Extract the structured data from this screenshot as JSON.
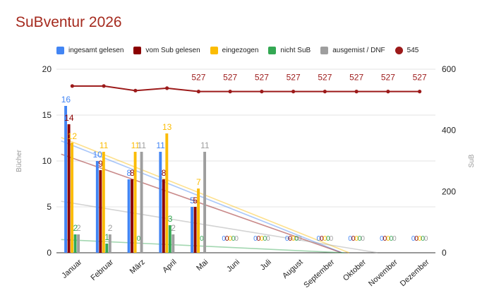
{
  "chart_data": {
    "type": "bar",
    "title": "SuBventur 2026",
    "categories": [
      "Januar",
      "Februar",
      "März",
      "April",
      "Mai",
      "Juni",
      "Juli",
      "August",
      "September",
      "Oktober",
      "November",
      "Dezember"
    ],
    "ylabel": "Bücher",
    "y2label": "SuB",
    "ylim": [
      0,
      20
    ],
    "yticks": [
      "0",
      "5",
      "10",
      "15",
      "20"
    ],
    "y2lim": [
      0,
      600
    ],
    "y2ticks": [
      "0",
      "200",
      "400",
      "600"
    ],
    "grid": true,
    "legend_position": "top",
    "trendlines": true,
    "series": [
      {
        "name": "ingesamt gelesen",
        "color": "#4285f4",
        "values": [
          16,
          10,
          8,
          11,
          5,
          0,
          0,
          0,
          0,
          0,
          0,
          0
        ]
      },
      {
        "name": "vom Sub gelesen",
        "color": "#8b0000",
        "values": [
          14,
          9,
          8,
          8,
          5,
          0,
          0,
          0,
          0,
          0,
          0,
          0
        ]
      },
      {
        "name": "eingezogen",
        "color": "#fbbc04",
        "values": [
          12,
          11,
          11,
          13,
          7,
          0,
          0,
          0,
          0,
          0,
          0,
          0
        ]
      },
      {
        "name": "nicht SuB",
        "color": "#34a853",
        "values": [
          2,
          1,
          0,
          3,
          0,
          0,
          0,
          0,
          0,
          0,
          0,
          0
        ]
      },
      {
        "name": "ausgemist / DNF",
        "color": "#9e9e9e",
        "values": [
          2,
          2,
          11,
          2,
          11,
          0,
          0,
          0,
          0,
          0,
          0,
          0
        ]
      }
    ],
    "line_series": {
      "name": "545",
      "color": "#9c1a1a",
      "axis": "right",
      "values": [
        545,
        545,
        530,
        538,
        527,
        527,
        527,
        527,
        527,
        527,
        527,
        527
      ],
      "labels": [
        "",
        "",
        "",
        "",
        "527",
        "527",
        "527",
        "527",
        "527",
        "527",
        "527",
        "527"
      ]
    }
  }
}
